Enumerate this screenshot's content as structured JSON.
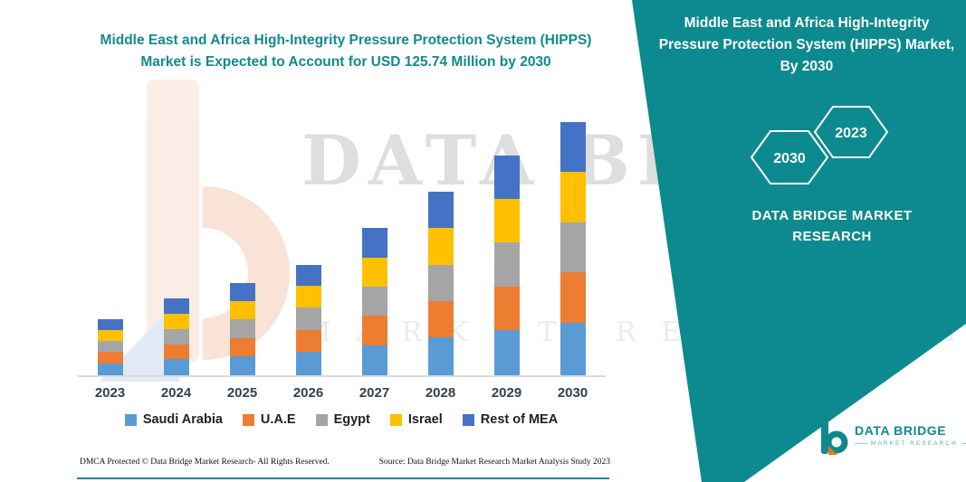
{
  "header": {
    "title_line1": "Middle East and Africa High-Integrity Pressure Protection System (HIPPS)",
    "title_line2": "Market is Expected to Account for USD 125.74 Million by 2030"
  },
  "watermark": {
    "line1": "DATA BRIDGE",
    "line2": "MARKET RESEARCH"
  },
  "side_panel": {
    "title": "Middle East and Africa High-Integrity Pressure Protection System (HIPPS) Market, By 2030",
    "hexagons": [
      "2030",
      "2023"
    ],
    "brand": "DATA BRIDGE MARKET RESEARCH",
    "accent_color": "#0C8A8F"
  },
  "footer": {
    "left": "DMCA Protected © Data Bridge Market Research-  All Rights Reserved.",
    "right": "Source: Data Bridge Market Research  Market Analysis Study 2023"
  },
  "logo": {
    "title": "DATA BRIDGE",
    "subtitle": "MARKET RESEARCH"
  },
  "chart_data": {
    "type": "bar",
    "stacked": true,
    "title": "Middle East and Africa High-Integrity Pressure Protection System (HIPPS) Market is Expected to Account for USD 125.74 Million by 2030",
    "unit": "USD Million",
    "xlabel": "Year",
    "ylabel": "Market Value (USD Million)",
    "ylim": [
      0,
      130
    ],
    "grid": false,
    "legend_position": "bottom",
    "categories": [
      "2023",
      "2024",
      "2025",
      "2026",
      "2027",
      "2028",
      "2029",
      "2030"
    ],
    "series": [
      {
        "name": "Saudi Arabia",
        "color": "#5B9BD5",
        "values": [
          6,
          8,
          9.5,
          11.5,
          15,
          19,
          22.5,
          26
        ]
      },
      {
        "name": "U.A.E",
        "color": "#ED7D31",
        "values": [
          5.5,
          7.5,
          9,
          11,
          14.5,
          18,
          21.5,
          25
        ]
      },
      {
        "name": "Egypt",
        "color": "#A5A5A5",
        "values": [
          5.5,
          7.5,
          9.5,
          11,
          14.5,
          18,
          22,
          25
        ]
      },
      {
        "name": "Israel",
        "color": "#FFC000",
        "values": [
          5.5,
          7.5,
          9,
          11,
          14.5,
          18,
          21.5,
          25
        ]
      },
      {
        "name": "Rest of MEA",
        "color": "#4472C4",
        "values": [
          5.5,
          7.5,
          9,
          10.5,
          14.5,
          18,
          21.5,
          24.74
        ]
      }
    ],
    "totals": [
      28,
      38,
      46,
      55,
      73,
      91,
      109,
      125.74
    ]
  }
}
